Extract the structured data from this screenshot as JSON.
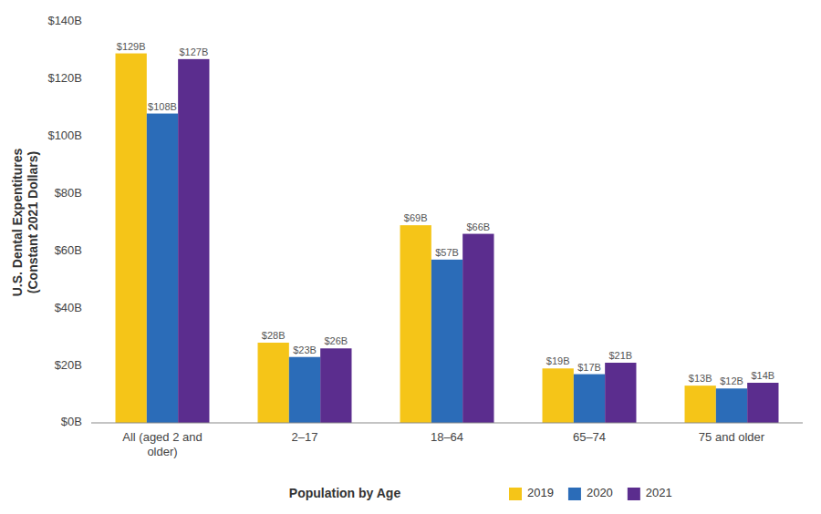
{
  "chart_data": {
    "type": "bar",
    "categories": [
      "All (aged 2 and\nolder)",
      "2–17",
      "18–64",
      "65–74",
      "75 and older"
    ],
    "series": [
      {
        "name": "2019",
        "color": "#F5C518",
        "values": [
          129,
          28,
          69,
          19,
          13
        ],
        "value_labels": [
          "$129B",
          "$28B",
          "$69B",
          "$19B",
          "$13B"
        ]
      },
      {
        "name": "2020",
        "color": "#2B6CB8",
        "values": [
          108,
          23,
          57,
          17,
          12
        ],
        "value_labels": [
          "$108B",
          "$23B",
          "$57B",
          "$17B",
          "$12B"
        ]
      },
      {
        "name": "2021",
        "color": "#5B2D8E",
        "values": [
          127,
          26,
          66,
          21,
          14
        ],
        "value_labels": [
          "$127B",
          "$26B",
          "$66B",
          "$21B",
          "$14B"
        ]
      }
    ],
    "xlabel": "Population by Age",
    "ylabel": "U.S. Dental Expentitures\n(Constant 2021 Dollars)",
    "ylim": [
      0,
      140
    ],
    "yticks": [
      {
        "value": 0,
        "label": "$0B"
      },
      {
        "value": 20,
        "label": "$20B"
      },
      {
        "value": 40,
        "label": "$40B"
      },
      {
        "value": 60,
        "label": "$60B"
      },
      {
        "value": 80,
        "label": "$80B"
      },
      {
        "value": 100,
        "label": "$100B"
      },
      {
        "value": 120,
        "label": "$120B"
      },
      {
        "value": 140,
        "label": "$140B"
      }
    ],
    "grid": false,
    "legend": "bottom",
    "data_labels": true
  }
}
